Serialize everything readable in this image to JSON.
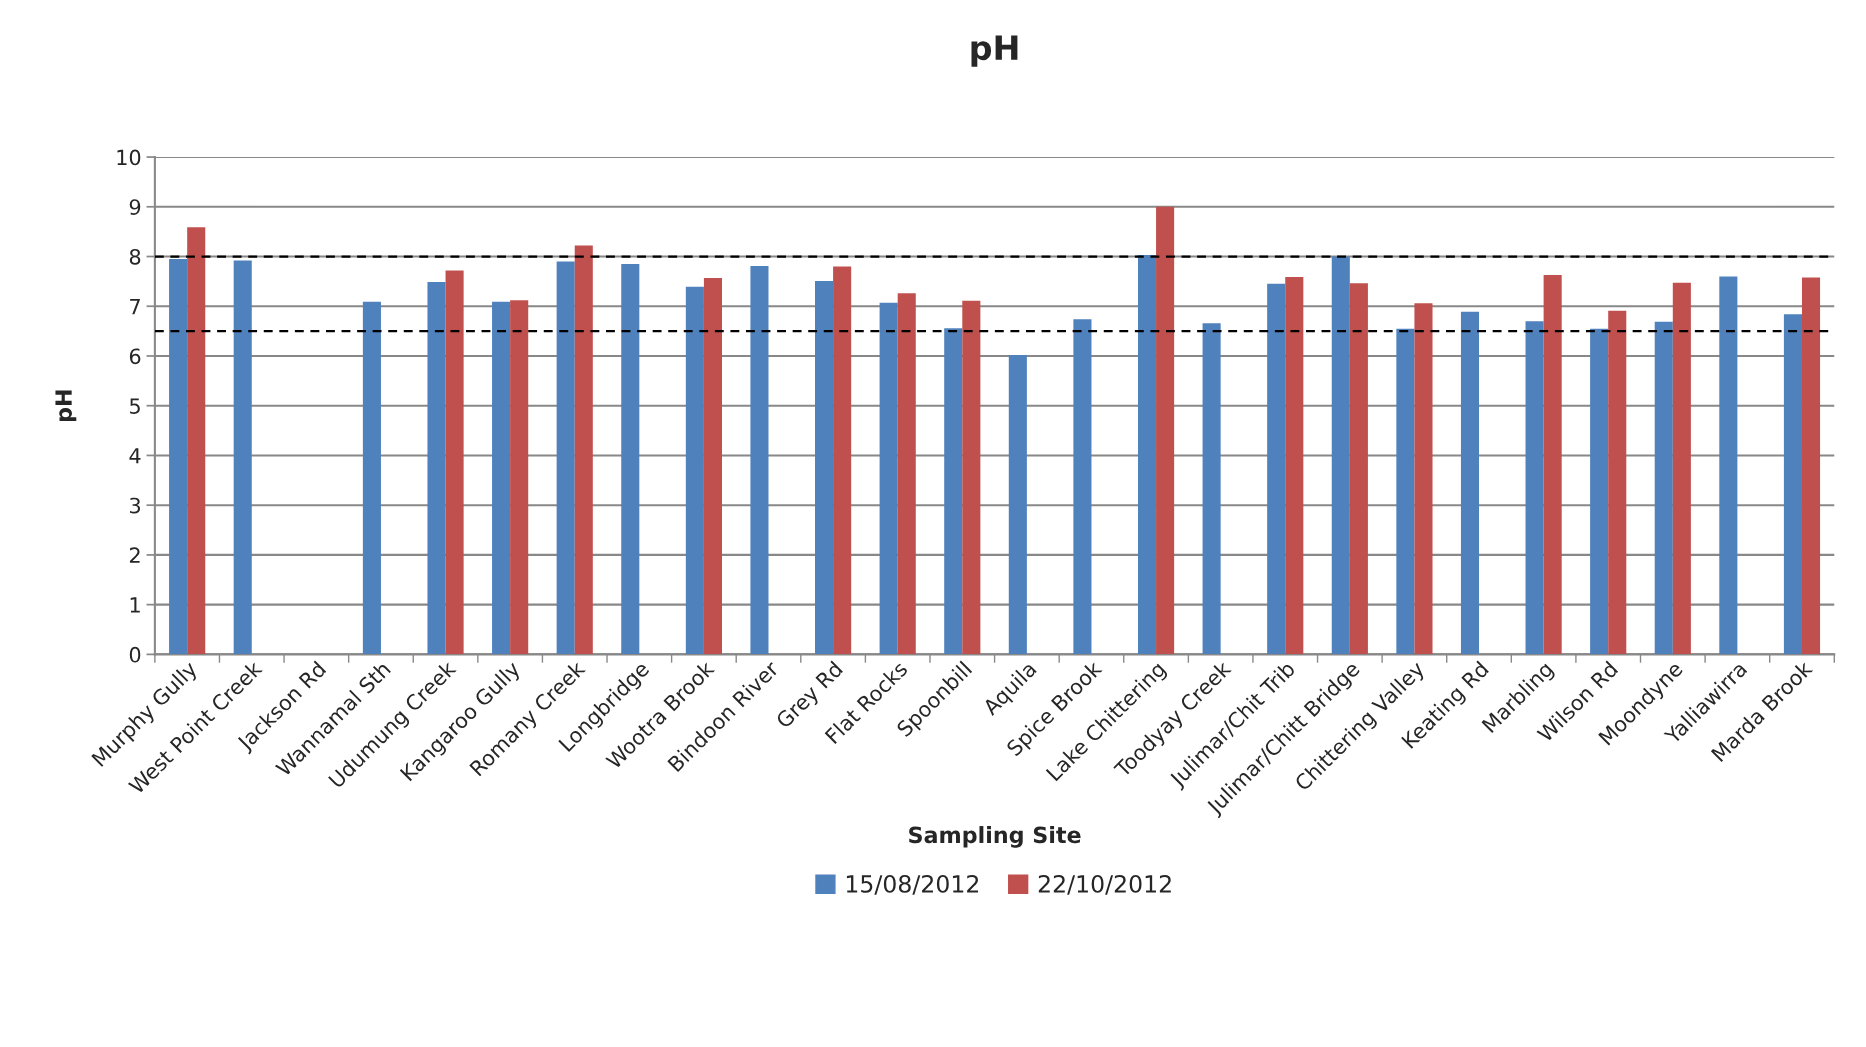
{
  "chart_data": {
    "type": "bar",
    "title": "pH",
    "xlabel": "Sampling Site",
    "ylabel": "pH",
    "categories": [
      "Murphy Gully",
      "West Point Creek",
      "Jackson Rd",
      "Wannamal Sth",
      "Udumung Creek",
      "Kangaroo Gully",
      "Romany Creek",
      "Longbridge",
      "Wootra Brook",
      "Bindoon River",
      "Grey Rd",
      "Flat Rocks",
      "Spoonbill",
      "Aquila",
      "Spice Brook",
      "Lake Chittering",
      "Toodyay Creek",
      "Julimar/Chit Trib",
      "Julimar/Chitt Bridge",
      "Chittering Valley",
      "Keating Rd",
      "Marbling",
      "Wilson Rd",
      "Moondyne",
      "Yalliawirra",
      "Marda Brook"
    ],
    "series": [
      {
        "name": "15/08/2012",
        "color": "#4f81bd",
        "values": [
          7.95,
          7.92,
          null,
          7.09,
          7.49,
          7.09,
          7.9,
          7.85,
          7.39,
          7.81,
          7.51,
          7.07,
          6.56,
          6.02,
          6.74,
          8.03,
          6.66,
          7.45,
          8.0,
          6.55,
          6.89,
          6.7,
          6.55,
          6.69,
          7.6,
          6.84
        ]
      },
      {
        "name": "22/10/2012",
        "color": "#c0504d",
        "values": [
          8.59,
          null,
          null,
          null,
          7.72,
          7.12,
          8.22,
          null,
          7.57,
          null,
          7.8,
          7.26,
          7.11,
          null,
          null,
          9.0,
          null,
          7.59,
          7.46,
          7.06,
          null,
          7.63,
          6.91,
          7.47,
          null,
          7.58
        ]
      }
    ],
    "ylim": [
      0,
      10
    ],
    "yticks": [
      0,
      1,
      2,
      3,
      4,
      5,
      6,
      7,
      8,
      9,
      10
    ],
    "grid": "y",
    "legend": "bottom",
    "ref_lines": [
      {
        "axis": "y",
        "value": 8,
        "color": "#000000",
        "line_style": "dashed"
      },
      {
        "axis": "y",
        "value": 6.5,
        "color": "#000000",
        "line_style": "dashed"
      }
    ]
  }
}
